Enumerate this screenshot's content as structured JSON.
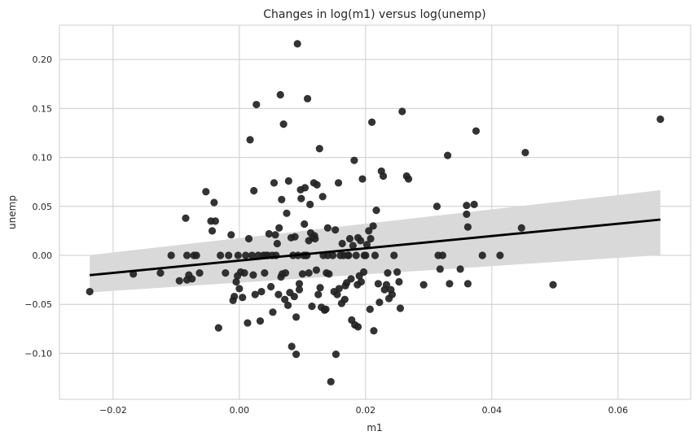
{
  "chart_data": {
    "type": "scatter",
    "title": "Changes in log(m1) versus log(unemp)",
    "xlabel": "m1",
    "ylabel": "unemp",
    "xlim": [
      -0.0285,
      0.0715
    ],
    "ylim": [
      -0.147,
      0.235
    ],
    "x_ticks": [
      -0.02,
      0.0,
      0.02,
      0.04,
      0.06
    ],
    "x_tick_labels": [
      "−0.02",
      "0.00",
      "0.02",
      "0.04",
      "0.06"
    ],
    "y_ticks": [
      -0.1,
      -0.05,
      0.0,
      0.05,
      0.1,
      0.15,
      0.2
    ],
    "y_tick_labels": [
      "−0.10",
      "−0.05",
      "0.00",
      "0.05",
      "0.10",
      "0.15",
      "0.20"
    ],
    "grid": true,
    "point_color": "#222222",
    "line_color": "#000000",
    "band_color": "#d9d9d9",
    "regression": {
      "x": [
        -0.0237,
        0.0667
      ],
      "y": [
        -0.0202,
        0.0365
      ],
      "ci_upper": [
        0.0003,
        0.0665
      ],
      "ci_lower": [
        -0.0378,
        0.0003
      ]
    },
    "points": [
      [
        -0.0237,
        -0.037
      ],
      [
        -0.0168,
        -0.019
      ],
      [
        -0.0125,
        -0.018
      ],
      [
        -0.0108,
        0.0
      ],
      [
        -0.0095,
        -0.026
      ],
      [
        -0.0085,
        0.038
      ],
      [
        -0.0083,
        -0.025
      ],
      [
        -0.0083,
        0.0
      ],
      [
        -0.008,
        -0.02
      ],
      [
        -0.0075,
        -0.024
      ],
      [
        -0.0072,
        0.0
      ],
      [
        -0.0068,
        0.0
      ],
      [
        -0.0063,
        -0.018
      ],
      [
        -0.0053,
        0.065
      ],
      [
        -0.0045,
        0.035
      ],
      [
        -0.0043,
        0.025
      ],
      [
        -0.004,
        0.054
      ],
      [
        -0.0038,
        0.035
      ],
      [
        -0.0033,
        -0.074
      ],
      [
        -0.003,
        0.0
      ],
      [
        -0.0022,
        -0.018
      ],
      [
        -0.0017,
        0.0
      ],
      [
        -0.0013,
        0.021
      ],
      [
        -0.001,
        -0.046
      ],
      [
        -0.0008,
        -0.042
      ],
      [
        -0.0005,
        -0.027
      ],
      [
        -0.0003,
        -0.021
      ],
      [
        -0.0002,
        0.0
      ],
      [
        0.0,
        -0.034
      ],
      [
        0.0002,
        -0.017
      ],
      [
        0.0005,
        -0.043
      ],
      [
        0.0008,
        -0.018
      ],
      [
        0.001,
        0.0
      ],
      [
        0.0013,
        -0.069
      ],
      [
        0.0015,
        0.017
      ],
      [
        0.0017,
        0.118
      ],
      [
        0.002,
        0.0
      ],
      [
        0.0022,
        -0.02
      ],
      [
        0.0023,
        0.066
      ],
      [
        0.0025,
        -0.04
      ],
      [
        0.0027,
        0.154
      ],
      [
        0.003,
        0.0
      ],
      [
        0.0033,
        -0.067
      ],
      [
        0.0035,
        -0.037
      ],
      [
        0.0038,
        0.0
      ],
      [
        0.004,
        -0.018
      ],
      [
        0.0042,
        0.0
      ],
      [
        0.0045,
        0.0
      ],
      [
        0.0047,
        0.022
      ],
      [
        0.005,
        -0.032
      ],
      [
        0.0052,
        0.0
      ],
      [
        0.0053,
        -0.058
      ],
      [
        0.0055,
        0.074
      ],
      [
        0.0057,
        0.021
      ],
      [
        0.0058,
        0.0
      ],
      [
        0.006,
        0.012
      ],
      [
        0.0062,
        -0.04
      ],
      [
        0.0063,
        0.028
      ],
      [
        0.0065,
        0.164
      ],
      [
        0.0066,
        -0.022
      ],
      [
        0.0067,
        0.057
      ],
      [
        0.0068,
        -0.019
      ],
      [
        0.007,
        0.134
      ],
      [
        0.0072,
        -0.045
      ],
      [
        0.0073,
        -0.018
      ],
      [
        0.0075,
        0.043
      ],
      [
        0.0077,
        -0.051
      ],
      [
        0.0078,
        0.076
      ],
      [
        0.008,
        -0.038
      ],
      [
        0.0082,
        0.018
      ],
      [
        0.0083,
        -0.093
      ],
      [
        0.0085,
        0.0
      ],
      [
        0.0087,
        -0.042
      ],
      [
        0.0088,
        0.019
      ],
      [
        0.009,
        -0.063
      ],
      [
        0.009,
        -0.101
      ],
      [
        0.0092,
        0.216
      ],
      [
        0.0093,
        0.0
      ],
      [
        0.0095,
        -0.029
      ],
      [
        0.0095,
        -0.035
      ],
      [
        0.0097,
        0.067
      ],
      [
        0.0098,
        0.058
      ],
      [
        0.01,
        -0.019
      ],
      [
        0.0102,
        0.0
      ],
      [
        0.0103,
        0.032
      ],
      [
        0.0104,
        0.069
      ],
      [
        0.0105,
        0.0
      ],
      [
        0.0107,
        0.0
      ],
      [
        0.0108,
        0.16
      ],
      [
        0.011,
        0.015
      ],
      [
        0.011,
        -0.018
      ],
      [
        0.0112,
        0.052
      ],
      [
        0.0113,
        0.023
      ],
      [
        0.0115,
        -0.052
      ],
      [
        0.0116,
        0.018
      ],
      [
        0.0118,
        0.074
      ],
      [
        0.0119,
        0.02
      ],
      [
        0.012,
        0.017
      ],
      [
        0.0122,
        -0.015
      ],
      [
        0.0123,
        0.072
      ],
      [
        0.0125,
        -0.04
      ],
      [
        0.0127,
        0.109
      ],
      [
        0.0128,
        -0.033
      ],
      [
        0.013,
        -0.053
      ],
      [
        0.0132,
        0.06
      ],
      [
        0.0133,
        0.0
      ],
      [
        0.0135,
        -0.056
      ],
      [
        0.0137,
        -0.055
      ],
      [
        0.0138,
        -0.018
      ],
      [
        0.014,
        0.028
      ],
      [
        0.014,
        0.0
      ],
      [
        0.0142,
        -0.019
      ],
      [
        0.0145,
        -0.129
      ],
      [
        0.0148,
        0.0
      ],
      [
        0.015,
        -0.037
      ],
      [
        0.0152,
        0.026
      ],
      [
        0.0153,
        -0.101
      ],
      [
        0.0155,
        -0.04
      ],
      [
        0.0157,
        0.074
      ],
      [
        0.0158,
        -0.034
      ],
      [
        0.016,
        0.0
      ],
      [
        0.0162,
        -0.049
      ],
      [
        0.0163,
        0.012
      ],
      [
        0.0165,
        0.0
      ],
      [
        0.0167,
        -0.045
      ],
      [
        0.0168,
        -0.031
      ],
      [
        0.017,
        -0.028
      ],
      [
        0.0172,
        0.0
      ],
      [
        0.0173,
        0.0
      ],
      [
        0.0175,
        0.017
      ],
      [
        0.0177,
        -0.024
      ],
      [
        0.0178,
        -0.066
      ],
      [
        0.018,
        0.01
      ],
      [
        0.0182,
        0.097
      ],
      [
        0.0183,
        -0.071
      ],
      [
        0.0185,
        0.0
      ],
      [
        0.0187,
        -0.03
      ],
      [
        0.0188,
        0.018
      ],
      [
        0.0188,
        -0.073
      ],
      [
        0.019,
        -0.021
      ],
      [
        0.0192,
        0.015
      ],
      [
        0.0193,
        -0.027
      ],
      [
        0.0195,
        0.078
      ],
      [
        0.0197,
        -0.017
      ],
      [
        0.0198,
        0.0
      ],
      [
        0.02,
        0.0
      ],
      [
        0.0202,
        0.011
      ],
      [
        0.0205,
        0.025
      ],
      [
        0.0207,
        -0.055
      ],
      [
        0.0208,
        0.017
      ],
      [
        0.021,
        0.136
      ],
      [
        0.0212,
        0.03
      ],
      [
        0.0213,
        -0.077
      ],
      [
        0.0215,
        0.0
      ],
      [
        0.0217,
        0.046
      ],
      [
        0.022,
        -0.029
      ],
      [
        0.0222,
        -0.048
      ],
      [
        0.0225,
        0.086
      ],
      [
        0.0228,
        0.081
      ],
      [
        0.023,
        -0.035
      ],
      [
        0.0233,
        -0.03
      ],
      [
        0.0235,
        -0.018
      ],
      [
        0.0237,
        -0.044
      ],
      [
        0.024,
        -0.035
      ],
      [
        0.0242,
        -0.04
      ],
      [
        0.0245,
        0.0
      ],
      [
        0.025,
        -0.017
      ],
      [
        0.0253,
        -0.027
      ],
      [
        0.0255,
        -0.054
      ],
      [
        0.0258,
        0.147
      ],
      [
        0.0265,
        0.081
      ],
      [
        0.0268,
        0.078
      ],
      [
        0.0292,
        -0.03
      ],
      [
        0.0313,
        0.05
      ],
      [
        0.0315,
        0.0
      ],
      [
        0.0318,
        -0.014
      ],
      [
        0.0322,
        0.0
      ],
      [
        0.033,
        0.102
      ],
      [
        0.0333,
        -0.029
      ],
      [
        0.035,
        -0.014
      ],
      [
        0.036,
        0.051
      ],
      [
        0.036,
        0.042
      ],
      [
        0.0362,
        0.029
      ],
      [
        0.0362,
        -0.029
      ],
      [
        0.0372,
        0.052
      ],
      [
        0.0375,
        0.127
      ],
      [
        0.0385,
        0.0
      ],
      [
        0.0413,
        0.0
      ],
      [
        0.0447,
        0.028
      ],
      [
        0.0453,
        0.105
      ],
      [
        0.0497,
        -0.03
      ],
      [
        0.0667,
        0.139
      ]
    ]
  }
}
